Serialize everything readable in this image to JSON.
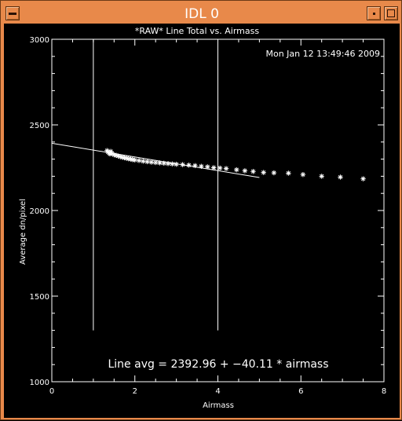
{
  "window": {
    "title": "IDL 0"
  },
  "plot": {
    "timestamp": "Mon Jan 12 13:49:46 2009",
    "fit_label": "Line avg = 2392.96 + −40.11 * airmass"
  },
  "colors": {
    "frame": "#E8894A",
    "background": "#000000",
    "foreground": "#FFFFFF"
  },
  "chart_data": {
    "type": "scatter",
    "title": "*RAW* Line Total vs. Airmass",
    "xlabel": "Airmass",
    "ylabel": "Average dn/pixel",
    "xlim": [
      0,
      8
    ],
    "ylim": [
      1000,
      3000
    ],
    "xticks": [
      0,
      2,
      4,
      6,
      8
    ],
    "yticks": [
      1000,
      1500,
      2000,
      2500,
      3000
    ],
    "grid": false,
    "marker": "asterisk",
    "series": [
      {
        "points": [
          [
            1.33,
            2350
          ],
          [
            1.35,
            2342
          ],
          [
            1.38,
            2336
          ],
          [
            1.4,
            2330
          ],
          [
            1.42,
            2345
          ],
          [
            1.45,
            2333
          ],
          [
            1.5,
            2325
          ],
          [
            1.55,
            2322
          ],
          [
            1.6,
            2318
          ],
          [
            1.65,
            2314
          ],
          [
            1.7,
            2311
          ],
          [
            1.75,
            2308
          ],
          [
            1.8,
            2305
          ],
          [
            1.85,
            2302
          ],
          [
            1.9,
            2300
          ],
          [
            1.95,
            2297
          ],
          [
            2.0,
            2295
          ],
          [
            2.1,
            2292
          ],
          [
            2.2,
            2288
          ],
          [
            2.3,
            2285
          ],
          [
            2.4,
            2282
          ],
          [
            2.5,
            2280
          ],
          [
            2.6,
            2278
          ],
          [
            2.7,
            2276
          ],
          [
            2.8,
            2274
          ],
          [
            2.9,
            2272
          ],
          [
            3.0,
            2270
          ],
          [
            3.15,
            2268
          ],
          [
            3.3,
            2265
          ],
          [
            3.45,
            2262
          ],
          [
            3.6,
            2258
          ],
          [
            3.75,
            2255
          ],
          [
            3.9,
            2250
          ],
          [
            4.05,
            2248
          ],
          [
            4.2,
            2245
          ],
          [
            4.45,
            2238
          ],
          [
            4.65,
            2232
          ],
          [
            4.85,
            2228
          ],
          [
            5.1,
            2222
          ],
          [
            5.35,
            2220
          ],
          [
            5.7,
            2218
          ],
          [
            6.05,
            2210
          ],
          [
            6.5,
            2200
          ],
          [
            6.95,
            2195
          ],
          [
            7.5,
            2185
          ]
        ]
      }
    ],
    "fit_line": {
      "intercept": 2392.96,
      "slope": -40.11,
      "x_range": [
        0,
        5
      ]
    },
    "vertical_lines": {
      "x": [
        1.0,
        4.0
      ],
      "y_range": [
        1300,
        3000
      ]
    }
  }
}
